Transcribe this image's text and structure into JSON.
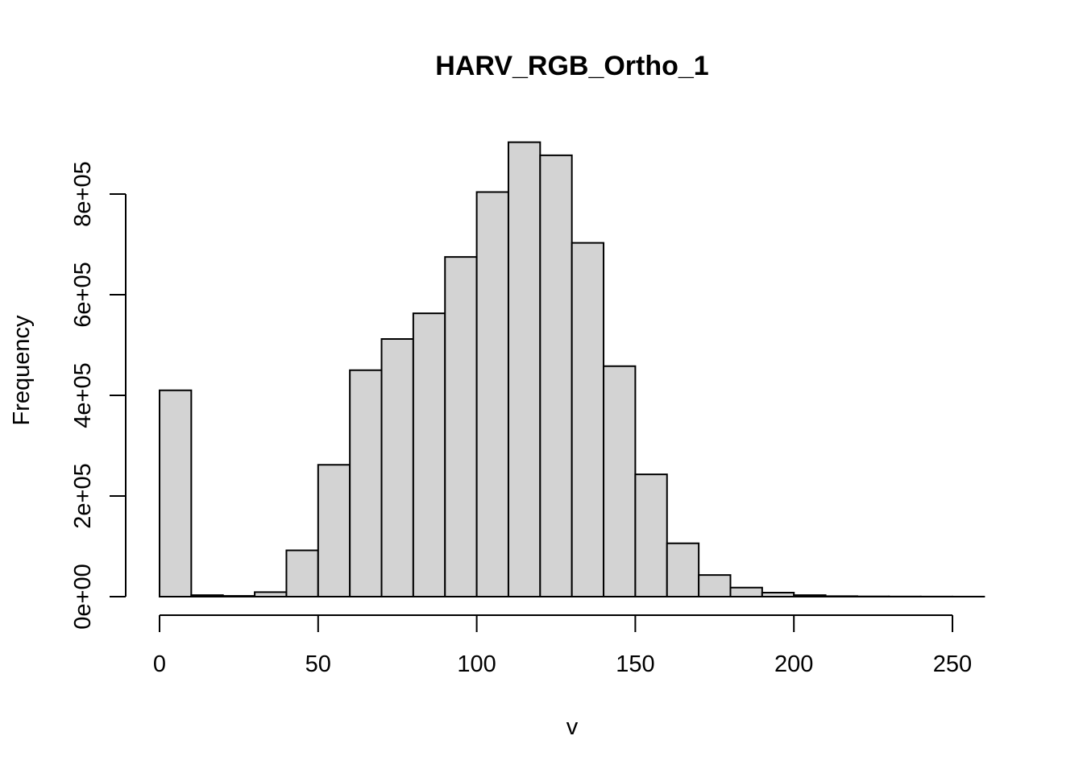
{
  "chart_data": {
    "type": "bar",
    "title": "HARV_RGB_Ortho_1",
    "xlabel": "v",
    "ylabel": "Frequency",
    "bar_color": "#d3d3d3",
    "outline_color": "#000000",
    "bin_edges": [
      0,
      10,
      20,
      30,
      40,
      50,
      60,
      70,
      80,
      90,
      100,
      110,
      120,
      130,
      140,
      150,
      160,
      170,
      180,
      190,
      200,
      210,
      220,
      230,
      240,
      250,
      260
    ],
    "values": [
      410000,
      3000,
      1500,
      9000,
      92000,
      262000,
      450000,
      512000,
      563000,
      675000,
      804000,
      903000,
      877000,
      703000,
      458000,
      243000,
      106000,
      43000,
      18000,
      8000,
      3000,
      1000,
      500,
      300,
      200,
      100
    ],
    "xlim": [
      0,
      260
    ],
    "ylim": [
      0,
      900000
    ],
    "x_ticks": [
      {
        "value": 0,
        "label": "0"
      },
      {
        "value": 50,
        "label": "50"
      },
      {
        "value": 100,
        "label": "100"
      },
      {
        "value": 150,
        "label": "150"
      },
      {
        "value": 200,
        "label": "200"
      },
      {
        "value": 250,
        "label": "250"
      }
    ],
    "y_ticks": [
      {
        "value": 0,
        "label": "0e+00"
      },
      {
        "value": 200000,
        "label": "2e+05"
      },
      {
        "value": 400000,
        "label": "4e+05"
      },
      {
        "value": 600000,
        "label": "6e+05"
      },
      {
        "value": 800000,
        "label": "8e+05"
      }
    ],
    "grid": false,
    "legend": "none"
  }
}
